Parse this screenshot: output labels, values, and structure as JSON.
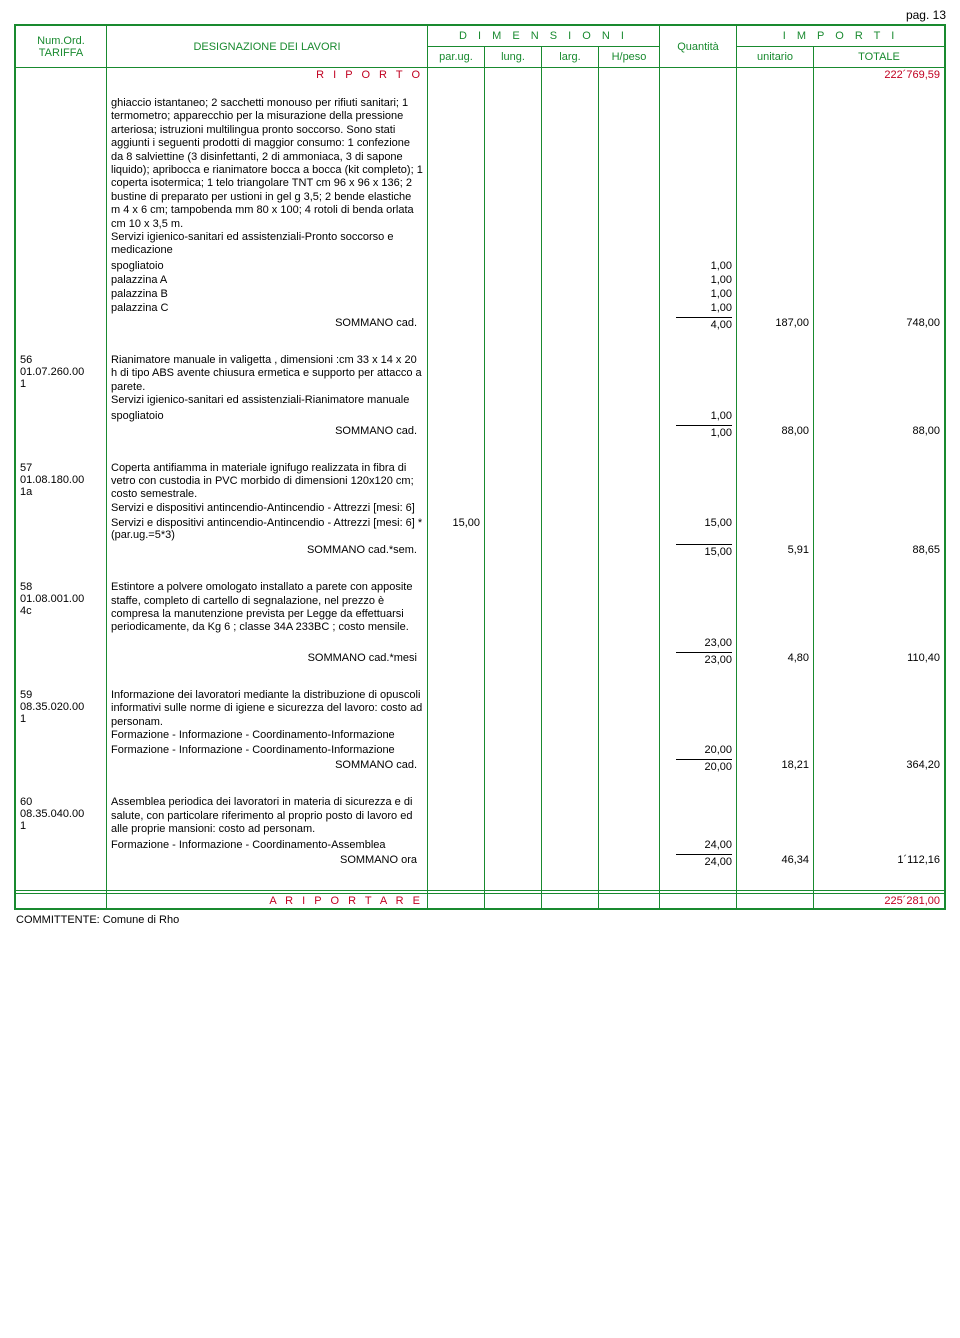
{
  "page_label": "pag. 13",
  "header": {
    "col_num1": "Num.Ord.",
    "col_num2": "TARIFFA",
    "col_desc": "DESIGNAZIONE DEI LAVORI",
    "col_dim_title": "D I M E N S I O N I",
    "col_dim_parug": "par.ug.",
    "col_dim_lung": "lung.",
    "col_dim_larg": "larg.",
    "col_dim_hpeso": "H/peso",
    "col_qty": "Quantità",
    "col_imp_title": "I M P O R T I",
    "col_imp_unit": "unitario",
    "col_imp_tot": "TOTALE"
  },
  "riporto_label": "R I P O R T O",
  "riporto_value": "222´769,59",
  "riportare_label": "A   R I P O R T A R E",
  "riportare_value": "225´281,00",
  "committente": "COMMITTENTE: Comune di Rho",
  "items": [
    {
      "num": "",
      "code": "",
      "desc": "ghiaccio istantaneo; 2 sacchetti monouso per rifiuti sanitari; 1 termometro; apparecchio per la misurazione della pressione arteriosa;  istruzioni multilingua pronto soccorso. Sono stati aggiunti i seguenti prodotti di maggior consumo: 1 confezione da 8 salviettine (3 disinfettanti, 2 di ammoniaca, 3 di sapone liquido); apribocca e rianimatore bocca a bocca (kit completo); 1 coperta isotermica; 1 telo triangolare TNT cm 96 x 96 x 136; 2 bustine di preparato per ustioni in gel g 3,5; 2 bende elastiche m 4 x 6 cm; tampobenda mm 80 x 100; 4 rotoli di benda orlata cm 10 x 3,5 m.\nServizi igienico-sanitari ed assistenziali-Pronto soccorso e medicazione",
      "lines": [
        {
          "label": "spogliatoio",
          "qty": "1,00"
        },
        {
          "label": "palazzina A",
          "qty": "1,00"
        },
        {
          "label": "palazzina B",
          "qty": "1,00"
        },
        {
          "label": "palazzina C",
          "qty": "1,00"
        }
      ],
      "sum_label": "SOMMANO cad.",
      "sum_qty": "4,00",
      "unit": "187,00",
      "total": "748,00"
    },
    {
      "num": "56",
      "code": "01.07.260.001",
      "desc": "Rianimatore manuale in valigetta , dimensioni :cm 33 x 14 x 20 h di tipo ABS avente chiusura ermetica e supporto per attacco a parete.\nServizi igienico-sanitari ed assistenziali-Rianimatore manuale",
      "lines": [
        {
          "label": "spogliatoio",
          "qty": "1,00"
        }
      ],
      "sum_label": "SOMMANO cad.",
      "sum_qty": "1,00",
      "unit": "88,00",
      "total": "88,00"
    },
    {
      "num": "57",
      "code": "01.08.180.001a",
      "desc": "Coperta antifiamma in materiale ignifugo realizzata in fibra di vetro con custodia in PVC morbido di dimensioni 120x120 cm; costo semestrale.\nServizi e dispositivi antincendio-Antincendio - Attrezzi [mesi: 6]",
      "lines": [
        {
          "label": "Servizi e dispositivi antincendio-Antincendio - Attrezzi [mesi: 6] *(par.ug.=5*3)",
          "parug": "15,00",
          "qty": "15,00"
        }
      ],
      "sum_label": "SOMMANO cad.*sem.",
      "sum_qty": "15,00",
      "unit": "5,91",
      "total": "88,65"
    },
    {
      "num": "58",
      "code": "01.08.001.004c",
      "desc": "Estintore a polvere omologato installato a parete con apposite staffe, completo di cartello di segnalazione, nel prezzo è compresa la manutenzione prevista per Legge da effettuarsi periodicamente, da Kg 6 ; classe 34A 233BC ; costo mensile.",
      "lines": [
        {
          "label": "",
          "qty": "23,00"
        }
      ],
      "sum_label": "SOMMANO cad.*mesi",
      "sum_qty": "23,00",
      "unit": "4,80",
      "total": "110,40"
    },
    {
      "num": "59",
      "code": "08.35.020.001",
      "desc": "Informazione dei lavoratori mediante la distribuzione di opuscoli informativi sulle norme di igiene e sicurezza del lavoro: costo ad personam.\nFormazione - Informazione - Coordinamento-Informazione",
      "lines": [
        {
          "label": "Formazione - Informazione - Coordinamento-Informazione",
          "qty": "20,00"
        }
      ],
      "sum_label": "SOMMANO cad.",
      "sum_qty": "20,00",
      "unit": "18,21",
      "total": "364,20"
    },
    {
      "num": "60",
      "code": "08.35.040.001",
      "desc": "Assemblea periodica dei lavoratori in materia di sicurezza e di salute, con particolare riferimento al proprio posto di lavoro ed alle proprie mansioni: costo ad personam.",
      "lines": [
        {
          "label": "Formazione - Informazione - Coordinamento-Assemblea",
          "qty": "24,00"
        }
      ],
      "sum_label": "SOMMANO ora",
      "sum_qty": "24,00",
      "unit": "46,34",
      "total": "1´112,16"
    }
  ]
}
